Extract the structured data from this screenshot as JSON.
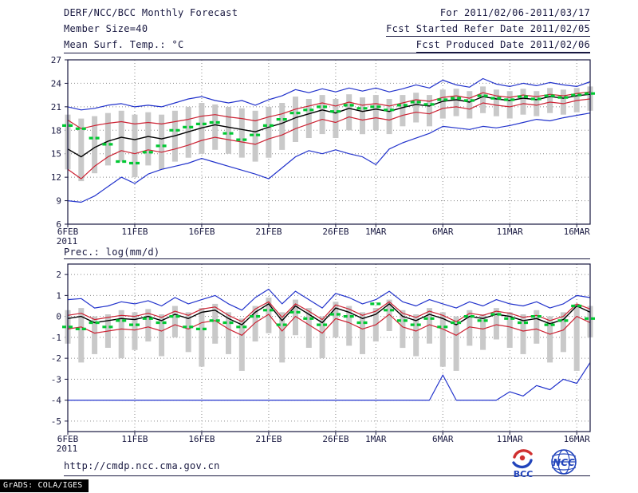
{
  "header": {
    "title": "DERF/NCC/BCC Monthly Forecast",
    "for_range": "For 2011/02/06-2011/03/17",
    "member_size": "Member Size=40",
    "fcst_started": "Fcst Started Refer Date 2011/02/05",
    "variable_label": "Mean Surf. Temp.: °C",
    "fcst_produced": "Fcst Produced Date 2011/02/06"
  },
  "precip_label": "Prec.: log(mm/d)",
  "footer": {
    "url": "http://cmdp.ncc.cma.gov.cn",
    "grads_credit": "GrADS: COLA/IGES",
    "logo_bcc_label": "BCC",
    "logo_ncc_label": "NCC"
  },
  "colors": {
    "text": "#181840",
    "frame": "#181840",
    "grid": "#8a8a8a",
    "blue": "#2233cc",
    "red": "#cc2233",
    "green": "#00c832",
    "gray_bar": "#c9c9c9"
  },
  "chart_data": [
    {
      "type": "line",
      "title": "Mean Surf. Temp.: °C",
      "subtitle": "DERF/NCC/BCC Monthly Forecast, Member Size=40, For 2011/02/06-2011/03/17",
      "n": 40,
      "ylim": [
        6,
        27
      ],
      "yticks": [
        6,
        9,
        12,
        15,
        18,
        21,
        24,
        27
      ],
      "grid": true,
      "legend": "none",
      "xticks": [
        {
          "i": 0,
          "label": "6FEB",
          "sub": "2011"
        },
        {
          "i": 5,
          "label": "11FEB"
        },
        {
          "i": 10,
          "label": "16FEB"
        },
        {
          "i": 15,
          "label": "21FEB"
        },
        {
          "i": 20,
          "label": "26FEB"
        },
        {
          "i": 23,
          "label": "1MAR"
        },
        {
          "i": 28,
          "label": "6MAR"
        },
        {
          "i": 33,
          "label": "11MAR"
        },
        {
          "i": 38,
          "label": "16MAR"
        }
      ],
      "bars": {
        "name": "ensemble-spread",
        "color": "#c9c9c9",
        "low": [
          13.0,
          11.5,
          12.5,
          13.5,
          14.0,
          12.0,
          13.5,
          13.0,
          14.0,
          14.5,
          15.0,
          15.5,
          15.0,
          14.5,
          14.0,
          14.5,
          15.5,
          16.5,
          17.0,
          17.5,
          17.0,
          18.0,
          17.5,
          18.0,
          17.5,
          18.5,
          19.0,
          18.5,
          19.5,
          19.8,
          19.5,
          20.2,
          19.8,
          19.5,
          20.0,
          19.8,
          20.2,
          20.0,
          20.3,
          20.5
        ],
        "high": [
          20.0,
          19.5,
          19.8,
          20.2,
          20.5,
          20.0,
          20.3,
          20.0,
          20.5,
          21.0,
          21.5,
          21.3,
          21.0,
          20.8,
          20.5,
          21.0,
          21.5,
          22.3,
          22.0,
          22.5,
          22.0,
          22.6,
          22.2,
          22.5,
          22.0,
          22.5,
          22.8,
          22.5,
          23.2,
          23.3,
          23.0,
          23.6,
          23.2,
          23.0,
          23.3,
          23.0,
          23.4,
          23.2,
          23.4,
          23.6
        ]
      },
      "series": [
        {
          "name": "ensemble-max",
          "kind": "line",
          "color": "#2233cc",
          "values": [
            21.0,
            20.6,
            20.8,
            21.2,
            21.4,
            21.0,
            21.2,
            21.0,
            21.5,
            22.0,
            22.3,
            21.8,
            21.5,
            21.8,
            21.2,
            21.9,
            22.4,
            23.2,
            22.8,
            23.3,
            22.9,
            23.4,
            23.0,
            23.4,
            22.9,
            23.3,
            23.8,
            23.4,
            24.4,
            23.8,
            23.5,
            24.6,
            23.9,
            23.6,
            24.0,
            23.7,
            24.1,
            23.8,
            23.6,
            24.2
          ]
        },
        {
          "name": "upper-bound",
          "kind": "line",
          "color": "#cc2233",
          "values": [
            19.3,
            18.2,
            18.6,
            18.9,
            19.1,
            18.8,
            19.0,
            18.8,
            19.1,
            19.4,
            19.8,
            20.0,
            19.7,
            19.5,
            19.2,
            19.7,
            20.1,
            20.7,
            21.1,
            21.5,
            21.1,
            21.6,
            21.2,
            21.4,
            21.1,
            21.5,
            21.9,
            21.7,
            22.2,
            22.4,
            22.1,
            22.8,
            22.4,
            22.2,
            22.5,
            22.3,
            22.6,
            22.4,
            22.7,
            22.9
          ]
        },
        {
          "name": "ensemble-mean",
          "kind": "line",
          "color": "#000000",
          "values": [
            15.6,
            14.6,
            15.8,
            16.6,
            17.1,
            16.8,
            17.2,
            16.9,
            17.3,
            17.8,
            18.3,
            18.7,
            18.4,
            18.1,
            17.8,
            18.4,
            18.9,
            19.6,
            20.1,
            20.6,
            20.2,
            20.8,
            20.4,
            20.7,
            20.4,
            20.9,
            21.3,
            21.1,
            21.7,
            21.9,
            21.6,
            22.3,
            22.0,
            21.8,
            22.1,
            21.9,
            22.3,
            22.1,
            22.4,
            22.6
          ]
        },
        {
          "name": "lower-bound",
          "kind": "line",
          "color": "#cc2233",
          "values": [
            13.0,
            11.8,
            13.4,
            14.6,
            15.4,
            15.0,
            15.5,
            15.2,
            15.6,
            16.1,
            16.7,
            17.1,
            16.8,
            16.5,
            16.2,
            16.9,
            17.4,
            18.2,
            18.8,
            19.4,
            19.0,
            19.7,
            19.3,
            19.6,
            19.3,
            19.9,
            20.3,
            20.1,
            20.8,
            21.0,
            20.7,
            21.5,
            21.2,
            21.0,
            21.4,
            21.2,
            21.6,
            21.4,
            21.8,
            22.0
          ]
        },
        {
          "name": "ensemble-min",
          "kind": "line",
          "color": "#2233cc",
          "values": [
            9.0,
            8.8,
            9.6,
            10.8,
            12.0,
            11.2,
            12.4,
            13.0,
            13.4,
            13.8,
            14.4,
            13.9,
            13.4,
            12.9,
            12.4,
            11.8,
            13.2,
            14.6,
            15.4,
            15.0,
            15.5,
            15.0,
            14.6,
            13.6,
            15.6,
            16.4,
            17.0,
            17.6,
            18.5,
            18.3,
            18.1,
            18.5,
            18.3,
            18.6,
            19.0,
            19.4,
            19.2,
            19.6,
            19.9,
            20.2
          ]
        },
        {
          "name": "observation",
          "kind": "dashes",
          "color": "#00c832",
          "values": [
            18.6,
            18.2,
            17.0,
            16.2,
            14.0,
            13.8,
            15.2,
            16.0,
            18.0,
            18.4,
            18.8,
            19.0,
            17.6,
            16.8,
            17.4,
            18.6,
            19.4,
            20.2,
            20.6,
            21.0,
            20.4,
            21.2,
            20.8,
            21.0,
            20.6,
            21.2,
            21.6,
            21.3,
            21.9,
            22.1,
            21.8,
            22.4,
            22.1,
            21.9,
            22.3,
            22.0,
            22.4,
            22.2,
            22.5,
            22.7
          ]
        }
      ]
    },
    {
      "type": "line",
      "title": "Prec.: log(mm/d)",
      "n": 40,
      "ylim": [
        -5.5,
        2.5
      ],
      "yticks": [
        -5,
        -4,
        -3,
        -2,
        -1,
        0,
        1,
        2
      ],
      "grid": true,
      "legend": "none",
      "xticks": [
        {
          "i": 0,
          "label": "6FEB",
          "sub": "2011"
        },
        {
          "i": 5,
          "label": "11FEB"
        },
        {
          "i": 10,
          "label": "16FEB"
        },
        {
          "i": 15,
          "label": "21FEB"
        },
        {
          "i": 20,
          "label": "26FEB"
        },
        {
          "i": 23,
          "label": "1MAR"
        },
        {
          "i": 28,
          "label": "6MAR"
        },
        {
          "i": 33,
          "label": "11MAR"
        },
        {
          "i": 38,
          "label": "16MAR"
        }
      ],
      "bars": {
        "name": "ensemble-spread",
        "color": "#c9c9c9",
        "low": [
          -1.3,
          -2.2,
          -1.8,
          -1.5,
          -2.0,
          -1.6,
          -1.2,
          -1.9,
          -1.0,
          -1.7,
          -2.4,
          -1.3,
          -1.8,
          -2.6,
          -1.2,
          -0.8,
          -2.2,
          -0.9,
          -1.5,
          -2.0,
          -1.0,
          -1.4,
          -1.8,
          -1.2,
          -0.7,
          -1.5,
          -1.9,
          -1.3,
          -2.4,
          -2.6,
          -1.4,
          -1.6,
          -1.1,
          -1.5,
          -1.8,
          -1.3,
          -2.2,
          -1.7,
          -2.6,
          -1.0
        ],
        "high": [
          0.3,
          0.4,
          0.0,
          0.1,
          0.3,
          0.2,
          0.35,
          0.1,
          0.5,
          0.2,
          0.4,
          0.6,
          0.2,
          -0.1,
          0.5,
          0.9,
          0.2,
          0.8,
          0.4,
          0.0,
          0.7,
          0.5,
          0.2,
          0.4,
          0.8,
          0.3,
          0.1,
          0.4,
          0.2,
          0.0,
          0.3,
          0.1,
          0.4,
          0.2,
          0.1,
          0.3,
          0.0,
          0.2,
          0.6,
          0.5
        ]
      },
      "series": [
        {
          "name": "ensemble-max",
          "kind": "line",
          "color": "#2233cc",
          "values": [
            0.8,
            0.85,
            0.4,
            0.5,
            0.7,
            0.6,
            0.75,
            0.5,
            0.9,
            0.6,
            0.8,
            1.0,
            0.6,
            0.3,
            0.9,
            1.3,
            0.6,
            1.2,
            0.8,
            0.4,
            1.1,
            0.9,
            0.6,
            0.8,
            1.2,
            0.7,
            0.5,
            0.8,
            0.6,
            0.4,
            0.7,
            0.5,
            0.8,
            0.6,
            0.5,
            0.7,
            0.4,
            0.6,
            1.0,
            0.9
          ]
        },
        {
          "name": "upper-bound",
          "kind": "line",
          "color": "#cc2233",
          "values": [
            0.05,
            0.15,
            -0.15,
            -0.05,
            0.05,
            0.0,
            0.15,
            -0.05,
            0.25,
            0.05,
            0.35,
            0.45,
            0.05,
            -0.25,
            0.35,
            0.7,
            -0.05,
            0.6,
            0.25,
            -0.15,
            0.55,
            0.35,
            0.05,
            0.25,
            0.7,
            0.15,
            -0.05,
            0.25,
            0.05,
            -0.25,
            0.15,
            0.05,
            0.25,
            0.15,
            -0.05,
            0.05,
            -0.2,
            0.0,
            0.6,
            0.35
          ]
        },
        {
          "name": "ensemble-mean",
          "kind": "line",
          "color": "#000000",
          "values": [
            -0.1,
            0.0,
            -0.3,
            -0.2,
            -0.1,
            -0.15,
            0.0,
            -0.2,
            0.1,
            -0.1,
            0.2,
            0.3,
            -0.1,
            -0.4,
            0.2,
            0.6,
            -0.2,
            0.5,
            0.1,
            -0.3,
            0.4,
            0.2,
            -0.1,
            0.1,
            0.6,
            0.0,
            -0.2,
            0.1,
            -0.1,
            -0.4,
            0.0,
            -0.1,
            0.1,
            0.0,
            -0.2,
            -0.1,
            -0.35,
            -0.15,
            0.5,
            0.2
          ]
        },
        {
          "name": "lower-bound",
          "kind": "line",
          "color": "#cc2233",
          "values": [
            -0.6,
            -0.5,
            -0.8,
            -0.7,
            -0.6,
            -0.65,
            -0.5,
            -0.7,
            -0.4,
            -0.6,
            -0.3,
            -0.2,
            -0.6,
            -0.9,
            -0.3,
            0.1,
            -0.7,
            0.0,
            -0.4,
            -0.8,
            -0.1,
            -0.3,
            -0.6,
            -0.4,
            0.1,
            -0.5,
            -0.7,
            -0.4,
            -0.6,
            -0.9,
            -0.5,
            -0.6,
            -0.4,
            -0.5,
            -0.7,
            -0.6,
            -0.85,
            -0.65,
            0.0,
            -0.3
          ]
        },
        {
          "name": "ensemble-min",
          "kind": "line",
          "color": "#2233cc",
          "values": [
            -4,
            -4,
            -4,
            -4,
            -4,
            -4,
            -4,
            -4,
            -4,
            -4,
            -4,
            -4,
            -4,
            -4,
            -4,
            -4,
            -4,
            -4,
            -4,
            -4,
            -4,
            -4,
            -4,
            -4,
            -4,
            -4,
            -4,
            -4,
            -2.8,
            -4,
            -4,
            -4,
            -4,
            -3.6,
            -3.8,
            -3.3,
            -3.5,
            -3.0,
            -3.2,
            -2.2
          ]
        },
        {
          "name": "observation",
          "kind": "dashes",
          "color": "#00c832",
          "values": [
            -0.5,
            -0.6,
            -0.3,
            -0.5,
            -0.2,
            -0.4,
            -0.1,
            -0.3,
            0.0,
            -0.5,
            -0.6,
            -0.2,
            -0.3,
            -0.5,
            0.0,
            0.3,
            -0.4,
            0.2,
            -0.1,
            -0.4,
            0.1,
            0.0,
            -0.3,
            0.6,
            0.3,
            -0.2,
            -0.4,
            -0.1,
            -0.5,
            -0.3,
            0.0,
            -0.2,
            0.1,
            -0.1,
            -0.3,
            0.0,
            -0.4,
            -0.2,
            0.5,
            -0.1
          ]
        }
      ]
    }
  ]
}
